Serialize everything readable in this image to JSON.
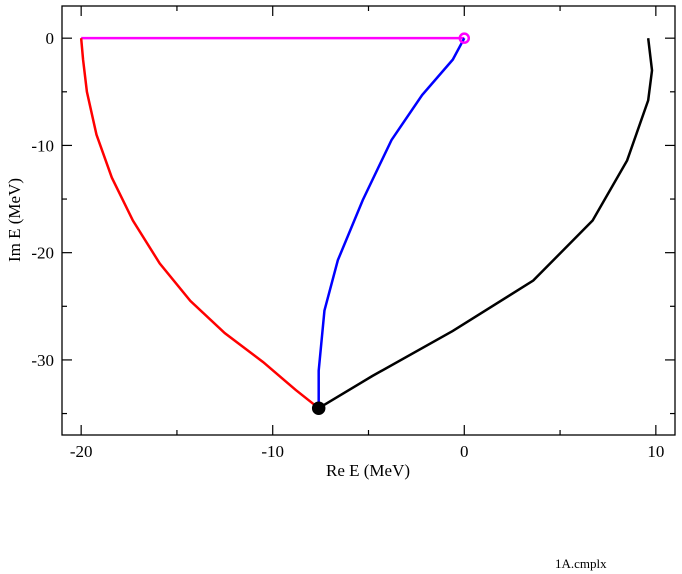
{
  "chart_data": {
    "type": "line",
    "xlabel": "Re E (MeV)",
    "ylabel": "Im E (MeV)",
    "annotation": "1A.cmplx",
    "xlim": [
      -21,
      11
    ],
    "ylim": [
      -37,
      3
    ],
    "xticks": [
      -20,
      -10,
      0,
      10
    ],
    "yticks": [
      -30,
      -20,
      -10,
      0
    ],
    "xminorticks": [
      -15,
      -5,
      5
    ],
    "yminorticks": [
      -35,
      -25,
      -15,
      -5
    ],
    "series": [
      {
        "color": "#ff00ff",
        "x": [
          -20,
          0
        ],
        "y": [
          0,
          0
        ]
      },
      {
        "color": "#ff0000",
        "x": [
          -20,
          -19.9,
          -19.7,
          -19.2,
          -18.4,
          -17.3,
          -15.9,
          -14.3,
          -12.5,
          -10.5,
          -8.8,
          -7.6
        ],
        "y": [
          0,
          -2,
          -5,
          -9,
          -13,
          -17,
          -21,
          -24.5,
          -27.5,
          -30.2,
          -32.8,
          -34.5
        ]
      },
      {
        "color": "#0000ff",
        "x": [
          0,
          -0.6,
          -2.2,
          -3.8,
          -5.3,
          -6.6,
          -7.3,
          -7.6,
          -7.6
        ],
        "y": [
          0,
          -2,
          -5.3,
          -9.5,
          -15.1,
          -20.7,
          -25.4,
          -31,
          -34.5
        ]
      },
      {
        "color": "#000000",
        "x": [
          -7.6,
          -4.8,
          -0.6,
          3.6,
          6.7,
          8.5,
          9.6,
          9.8,
          9.6
        ],
        "y": [
          -34.5,
          -31.5,
          -27.3,
          -22.6,
          -17,
          -11.4,
          -5.8,
          -3,
          0
        ]
      }
    ],
    "points": [
      {
        "color": "#000000",
        "marker": "filled",
        "x": [
          -7.6
        ],
        "y": [
          -34.5
        ]
      },
      {
        "color": "#ff00ff",
        "marker": "open",
        "x": [
          0
        ],
        "y": [
          0
        ]
      }
    ]
  }
}
